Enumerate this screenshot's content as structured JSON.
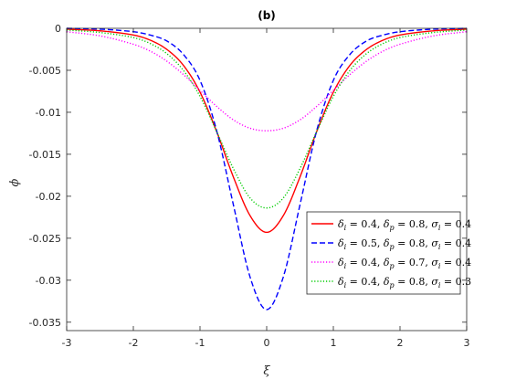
{
  "chart_data": {
    "type": "line",
    "title": "(b)",
    "xlabel": "ξ",
    "ylabel": "ϕ",
    "xlim": [
      -3,
      3
    ],
    "ylim": [
      -0.036,
      0
    ],
    "xticks": [
      -3,
      -2,
      -1,
      0,
      1,
      2,
      3
    ],
    "xtick_labels": [
      "-3",
      "-2",
      "-1",
      "0",
      "1",
      "2",
      "3"
    ],
    "yticks": [
      0,
      -0.005,
      -0.01,
      -0.015,
      -0.02,
      -0.025,
      -0.03,
      -0.035
    ],
    "ytick_labels": [
      "0",
      "-0.005",
      "-0.01",
      "-0.015",
      "-0.02",
      "-0.025",
      "-0.03",
      "-0.035"
    ],
    "grid": false,
    "legend_position": "lower-right",
    "series": [
      {
        "name": "δi = 0.4, δp = 0.8, σi = 0.4",
        "label_parts": [
          [
            "δ",
            "i",
            " = 0.4, "
          ],
          [
            "δ",
            "p",
            " = 0.8, "
          ],
          [
            "σ",
            "i",
            " = 0.4"
          ]
        ],
        "color": "#ff0000",
        "dash": "solid",
        "x": [
          -3,
          -2.5,
          -2,
          -1.75,
          -1.5,
          -1.25,
          -1,
          -0.75,
          -0.5,
          -0.25,
          0,
          0.25,
          0.5,
          0.75,
          1,
          1.25,
          1.5,
          1.75,
          2,
          2.5,
          3
        ],
        "y": [
          -0.0001,
          -0.0003,
          -0.0008,
          -0.0014,
          -0.0025,
          -0.0044,
          -0.0076,
          -0.0123,
          -0.0177,
          -0.0223,
          -0.0243,
          -0.0223,
          -0.0177,
          -0.0123,
          -0.0076,
          -0.0044,
          -0.0025,
          -0.0014,
          -0.0008,
          -0.0003,
          -0.0001
        ]
      },
      {
        "name": "δi = 0.5, δp = 0.8, σi = 0.4",
        "label_parts": [
          [
            "δ",
            "i",
            " = 0.5, "
          ],
          [
            "δ",
            "p",
            " = 0.8, "
          ],
          [
            "σ",
            "i",
            " = 0.4"
          ]
        ],
        "color": "#0000ff",
        "dash": "dashed",
        "x": [
          -3,
          -2.5,
          -2,
          -1.75,
          -1.5,
          -1.25,
          -1,
          -0.75,
          -0.5,
          -0.25,
          0,
          0.25,
          0.5,
          0.75,
          1,
          1.25,
          1.5,
          1.75,
          2,
          2.5,
          3
        ],
        "y": [
          0,
          -0.0001,
          -0.0004,
          -0.0008,
          -0.0015,
          -0.0031,
          -0.0062,
          -0.0122,
          -0.021,
          -0.0296,
          -0.0335,
          -0.0296,
          -0.021,
          -0.0122,
          -0.0062,
          -0.0031,
          -0.0015,
          -0.0008,
          -0.0004,
          -0.0001,
          0
        ]
      },
      {
        "name": "δi = 0.4, δp = 0.7, σi = 0.4",
        "label_parts": [
          [
            "δ",
            "i",
            " = 0.4, "
          ],
          [
            "δ",
            "p",
            " = 0.7, "
          ],
          [
            "σ",
            "i",
            " = 0.4"
          ]
        ],
        "color": "#ff00ff",
        "dash": "dotted",
        "x": [
          -3,
          -2.5,
          -2,
          -1.75,
          -1.5,
          -1.25,
          -1,
          -0.75,
          -0.5,
          -0.25,
          0,
          0.25,
          0.5,
          0.75,
          1,
          1.25,
          1.5,
          1.75,
          2,
          2.5,
          3
        ],
        "y": [
          -0.0004,
          -0.0009,
          -0.0019,
          -0.0027,
          -0.0039,
          -0.0055,
          -0.0074,
          -0.0093,
          -0.0109,
          -0.0119,
          -0.0122,
          -0.0119,
          -0.0109,
          -0.0093,
          -0.0074,
          -0.0055,
          -0.0039,
          -0.0027,
          -0.0019,
          -0.0009,
          -0.0004
        ]
      },
      {
        "name": "δi = 0.4, δp = 0.8, σi = 0.3",
        "label_parts": [
          [
            "δ",
            "i",
            " = 0.4, "
          ],
          [
            "δ",
            "p",
            " = 0.8, "
          ],
          [
            "σ",
            "i",
            " = 0.3"
          ]
        ],
        "color": "#00cc00",
        "dash": "dotted",
        "x": [
          -3,
          -2.5,
          -2,
          -1.75,
          -1.5,
          -1.25,
          -1,
          -0.75,
          -0.5,
          -0.25,
          0,
          0.25,
          0.5,
          0.75,
          1,
          1.25,
          1.5,
          1.75,
          2,
          2.5,
          3
        ],
        "y": [
          -0.0002,
          -0.0005,
          -0.0011,
          -0.0018,
          -0.003,
          -0.005,
          -0.0081,
          -0.0123,
          -0.0167,
          -0.0202,
          -0.0214,
          -0.0202,
          -0.0167,
          -0.0123,
          -0.0081,
          -0.005,
          -0.003,
          -0.0018,
          -0.0011,
          -0.0005,
          -0.0002
        ]
      }
    ]
  }
}
